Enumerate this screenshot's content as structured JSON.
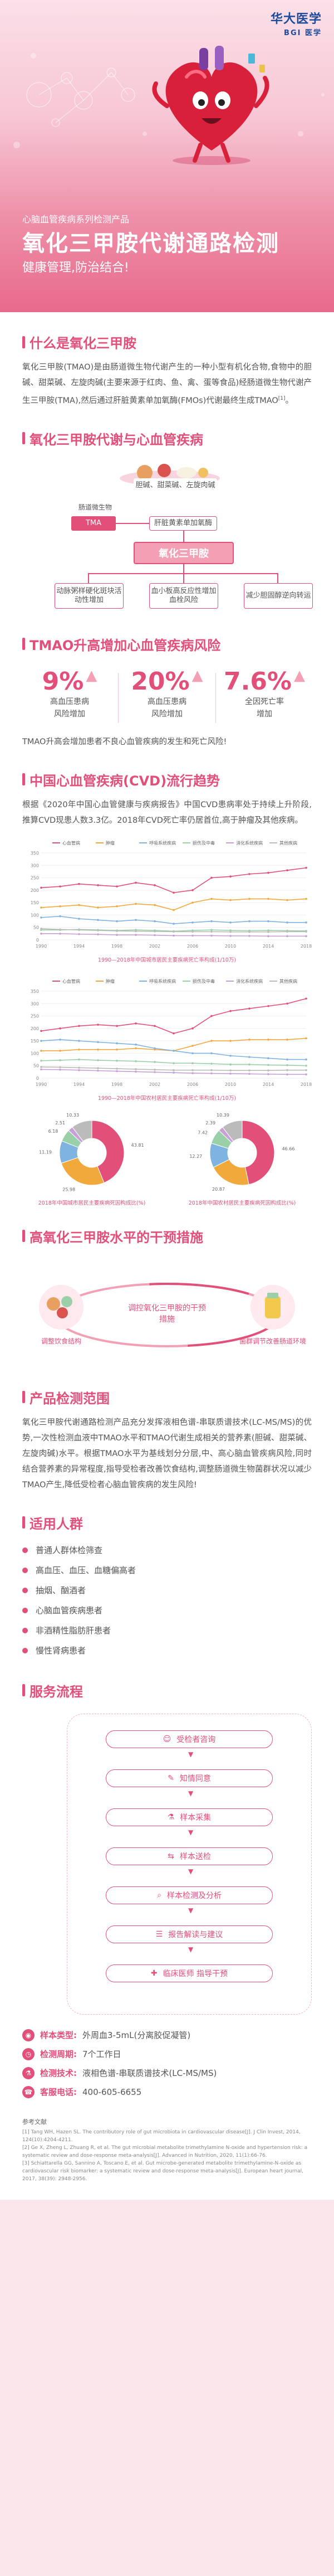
{
  "brand": {
    "name_cn": "华大医学",
    "name_en": "BGI",
    "suffix": "医学"
  },
  "hero": {
    "subtitle": "心脑血管疾病系列检测产品",
    "title": "氧化三甲胺代谢通路检测",
    "slogan": "健康管理,防治结合!"
  },
  "what_is": {
    "heading": "什么是氧化三甲胺",
    "text": "氧化三甲胺(TMAO)是由肠道微生物代谢产生的一种小型有机化合物,食物中的胆碱、甜菜碱、左旋肉碱(主要来源于红肉、鱼、禽、蛋等食品)经肠道微生物代谢产生三甲胺(TMA),然后通过肝脏黄素单加氧酶(FMOs)代谢最终生成TMAO",
    "sup": "[1]"
  },
  "pathway": {
    "heading": "氧化三甲胺代谢与心血管疾病",
    "sources": "胆碱、甜菜碱、左旋肉碱",
    "gut_label": "肠道微生物",
    "tma": "TMA",
    "liver": "肝脏黄素单加氧酶",
    "tmao": "氧化三甲胺",
    "effects": [
      "动脉粥样硬化斑块活动性增加",
      "血小板高反应性增加血栓风险",
      "减少胆固醇逆向转运"
    ]
  },
  "risk": {
    "heading": "TMAO升高增加心血管疾病风险",
    "items": [
      {
        "value": "9%",
        "desc1": "高血压患病",
        "desc2": "风险增加"
      },
      {
        "value": "20%",
        "desc1": "高血压患病",
        "desc2": "风险增加"
      },
      {
        "value": "7.6%",
        "desc1": "全因死亡率",
        "desc2": "增加"
      }
    ],
    "note": "TMAO升高会增加患者不良心血管疾病的发生和死亡风险!"
  },
  "cvd": {
    "heading": "中国心血管疾病(CVD)流行趋势",
    "text": "根据《2020年中国心血管健康与疾病报告》中国CVD患病率处于持续上升阶段,推算CVD现患人数3.3亿。2018年CVD死亡率仍居首位,高于肿瘤及其他疾病。"
  },
  "chart_data": [
    {
      "type": "line",
      "title": "",
      "caption": "1990—2018年中国城市居民主要疾病死亡率构成(1/10万)",
      "legend": [
        "心血管病",
        "肿瘤",
        "呼吸系统疾病",
        "损伤及中毒",
        "消化系统疾病",
        "其他疾病"
      ],
      "x": [
        "1990",
        "1992",
        "1994",
        "1996",
        "1998",
        "2000",
        "2002",
        "2004",
        "2006",
        "2008",
        "2010",
        "2012",
        "2014",
        "2016",
        "2018"
      ],
      "ylim": [
        0,
        350
      ],
      "ylabel": "",
      "series": [
        {
          "name": "心血管病",
          "values": [
            210,
            215,
            225,
            220,
            215,
            230,
            220,
            190,
            200,
            250,
            255,
            265,
            270,
            280,
            290
          ]
        },
        {
          "name": "肿瘤",
          "values": [
            130,
            135,
            140,
            130,
            135,
            145,
            140,
            120,
            150,
            165,
            160,
            165,
            165,
            160,
            165
          ]
        },
        {
          "name": "呼吸系统疾病",
          "values": [
            90,
            95,
            85,
            80,
            75,
            80,
            75,
            65,
            70,
            75,
            70,
            75,
            75,
            70,
            70
          ]
        },
        {
          "name": "损伤及中毒",
          "values": [
            40,
            40,
            42,
            40,
            38,
            40,
            38,
            35,
            38,
            40,
            38,
            37,
            38,
            37,
            36
          ]
        },
        {
          "name": "消化系统疾病",
          "values": [
            25,
            25,
            23,
            22,
            20,
            20,
            19,
            17,
            17,
            17,
            16,
            16,
            15,
            15,
            15
          ]
        },
        {
          "name": "其他疾病",
          "values": [
            45,
            42,
            40,
            38,
            36,
            35,
            34,
            33,
            33,
            33,
            32,
            32,
            32,
            33,
            33
          ]
        }
      ]
    },
    {
      "type": "line",
      "title": "",
      "caption": "1990—2018年中国农村居民主要疾病死亡率构成(1/10万)",
      "legend": [
        "心血管病",
        "肿瘤",
        "呼吸系统疾病",
        "损伤及中毒",
        "消化系统疾病",
        "其他疾病"
      ],
      "x": [
        "1990",
        "1992",
        "1994",
        "1996",
        "1998",
        "2000",
        "2002",
        "2004",
        "2006",
        "2008",
        "2010",
        "2012",
        "2014",
        "2016",
        "2018"
      ],
      "ylim": [
        0,
        350
      ],
      "ylabel": "",
      "series": [
        {
          "name": "心血管病",
          "values": [
            190,
            200,
            210,
            215,
            210,
            220,
            210,
            180,
            200,
            250,
            270,
            280,
            290,
            300,
            320
          ]
        },
        {
          "name": "肿瘤",
          "values": [
            110,
            110,
            115,
            115,
            115,
            120,
            115,
            110,
            130,
            150,
            150,
            155,
            155,
            155,
            160
          ]
        },
        {
          "name": "呼吸系统疾病",
          "values": [
            150,
            155,
            150,
            145,
            140,
            135,
            120,
            110,
            100,
            100,
            90,
            85,
            80,
            75,
            75
          ]
        },
        {
          "name": "损伤及中毒",
          "values": [
            70,
            72,
            75,
            72,
            70,
            68,
            65,
            60,
            60,
            58,
            55,
            55,
            53,
            52,
            50
          ]
        },
        {
          "name": "消化系统疾病",
          "values": [
            35,
            34,
            32,
            30,
            28,
            26,
            24,
            22,
            20,
            19,
            18,
            17,
            16,
            15,
            15
          ]
        },
        {
          "name": "其他疾病",
          "values": [
            45,
            44,
            42,
            40,
            38,
            36,
            34,
            32,
            32,
            32,
            31,
            31,
            31,
            32,
            32
          ]
        }
      ]
    },
    {
      "type": "pie",
      "caption": "2018年中国城市居民主要疾病死因构成比(%)",
      "labels": [
        "心血管病",
        "肿瘤",
        "呼吸系统疾病",
        "损伤及中毒",
        "消化系统疾病",
        "其他疾病"
      ],
      "values": [
        43.81,
        25.98,
        11.19,
        6.18,
        2.51,
        10.33
      ],
      "display": [
        "43.81",
        "25.98",
        "11.19",
        "6.18",
        "2.51",
        "10.33"
      ]
    },
    {
      "type": "pie",
      "caption": "2018年中国农村居民主要疾病死因构成比(%)",
      "labels": [
        "心血管病",
        "肿瘤",
        "呼吸系统疾病",
        "损伤及中毒",
        "消化系统疾病",
        "其他疾病"
      ],
      "values": [
        46.66,
        20.87,
        12.27,
        7.42,
        2.39,
        10.39
      ],
      "display": [
        "46.66",
        "20.87",
        "12.27",
        "7.42",
        "2.39",
        "10.39"
      ]
    }
  ],
  "intervention": {
    "heading": "高氧化三甲胺水平的干预措施",
    "center": "调控氧化三甲胺的干预措施",
    "left": "调整饮食结构",
    "right": "菌群调节改善肠道环境"
  },
  "range": {
    "heading": "产品检测范围",
    "text": "氧化三甲胺代谢通路检测产品充分发挥液相色谱-串联质谱技术(LC-MS/MS)的优势,一次性检测血液中TMAO水平和TMAO代谢生成相关的营养素(胆碱、甜菜碱、左旋肉碱)水平。根据TMAO水平为基线划分分层,中、高心脑血管疾病风险,同时结合营养素的异常程度,指导受检者改善饮食结构,调整肠道微生物菌群状况以减少TMAO产生,降低受检者心脑血管疾病的发生风险!"
  },
  "crowd": {
    "heading": "适用人群",
    "items": [
      "普通人群体检筛查",
      "高血压、血压、血糖偏高者",
      "抽烟、酗酒者",
      "心脑血管疾病患者",
      "非酒精性脂肪肝患者",
      "慢性肾病患者"
    ]
  },
  "flow": {
    "heading": "服务流程",
    "steps": [
      "受检者咨询",
      "知情同意",
      "样本采集",
      "样本送检",
      "样本检测及分析",
      "报告解读与建议",
      "临床医师 指导干预"
    ]
  },
  "specs": {
    "items": [
      {
        "key": "样本类型:",
        "value": "外周血3-5mL(分离胶促凝管)"
      },
      {
        "key": "检测周期:",
        "value": "7个工作日"
      },
      {
        "key": "检测技术:",
        "value": "液相色谱-串联质谱技术(LC-MS/MS)"
      },
      {
        "key": "客服电话:",
        "value": "400-605-6655"
      }
    ]
  },
  "refs": {
    "title": "参考文献",
    "items": [
      "[1] Tang WH, Hazen SL. The contributory role of gut microbiota in cardiovascular disease[J]. J Clin Invest, 2014, 124(10):4204-4211.",
      "[2] Ge X, Zheng L, Zhuang R, et al. The gut microbial metabolite trimethylamine N-oxide and hypertension risk: a systematic review and dose-response meta-analysis[J]. Advanced in Nutrition, 2020, 11(1):66-76.",
      "[3] Schiattarella GG, Sannino A, Toscano E, et al. Gut microbe-generated metabolite trimethylamine-N-oxide as cardiovascular risk biomarker: a systematic review and dose-response meta-analysis[J]. European heart journal, 2017, 38(39): 2948-2956."
    ]
  },
  "colors": {
    "accent": "#e2507a",
    "accent_light": "#f3a0b5",
    "blue": "#1a4b9e",
    "series": [
      "#e2507a",
      "#f2a93b",
      "#7fb3e0",
      "#9ad0a8",
      "#c7a0d8",
      "#bbbbbb"
    ]
  }
}
